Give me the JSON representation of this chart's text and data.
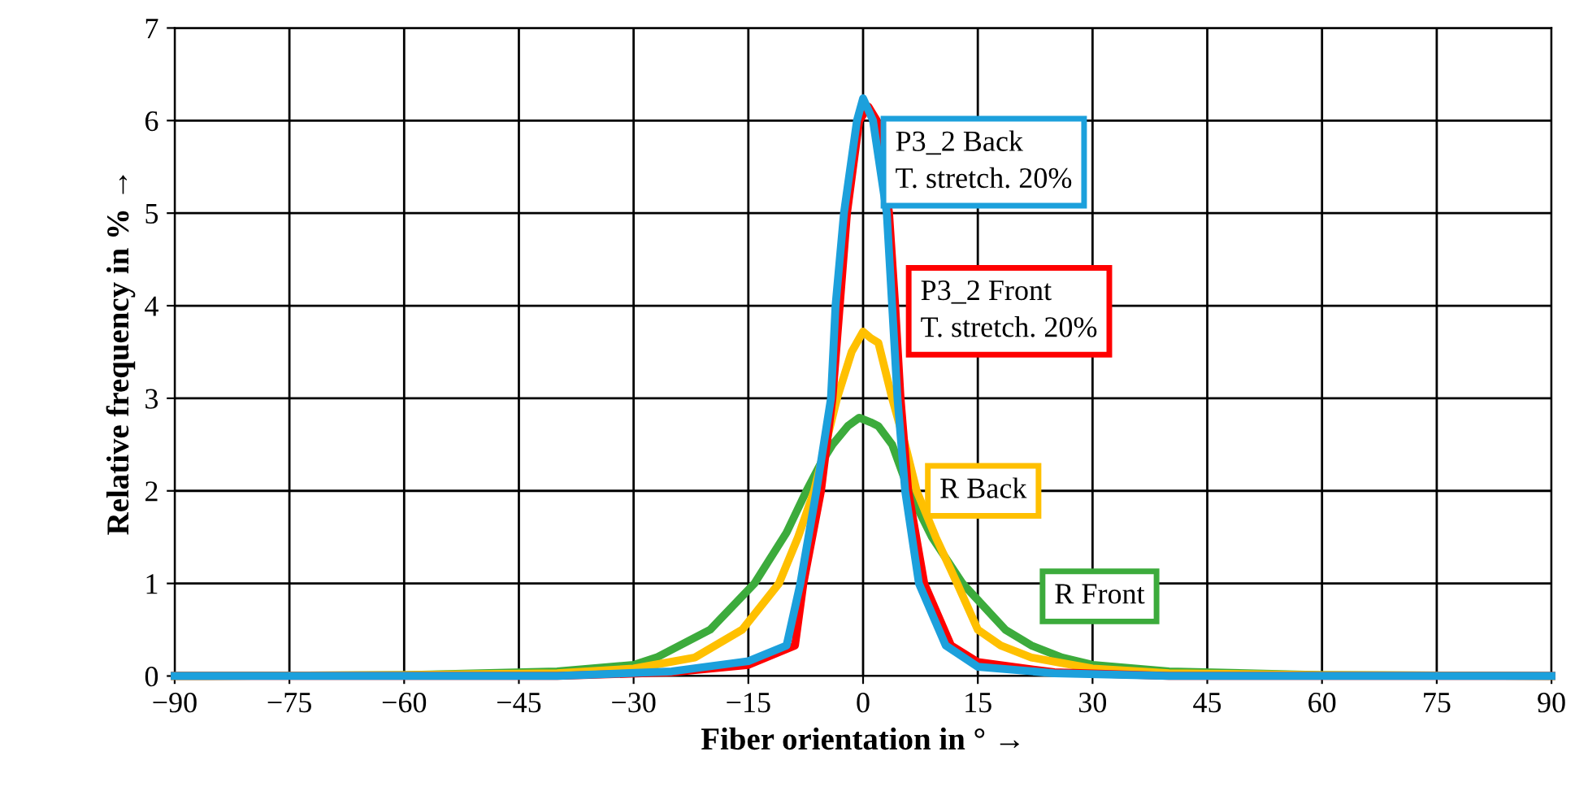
{
  "chart_data": {
    "type": "line",
    "xlabel": "Fiber orientation in ° →",
    "ylabel": "Relative frequency in % →",
    "xlim": [
      -90,
      90
    ],
    "ylim": [
      0,
      7
    ],
    "xticks": [
      {
        "value": -90,
        "label": "−90"
      },
      {
        "value": -75,
        "label": "−75"
      },
      {
        "value": -60,
        "label": "−60"
      },
      {
        "value": -45,
        "label": "−45"
      },
      {
        "value": -30,
        "label": "−30"
      },
      {
        "value": -15,
        "label": "−15"
      },
      0,
      15,
      30,
      45,
      60,
      75,
      90
    ],
    "yticks": [
      0,
      1,
      2,
      3,
      4,
      5,
      6,
      7
    ],
    "grid": true,
    "legend": false,
    "marker": "none",
    "line_style": "solid",
    "series": [
      {
        "name": "R Front",
        "color": "#3cab3c",
        "x": [
          -90,
          -60,
          -40,
          -30,
          -27,
          -20,
          -14.2,
          -10,
          -7.4,
          -5.5,
          -4,
          -2,
          -0.5,
          1,
          2,
          3.8,
          6,
          9,
          13,
          18.6,
          22,
          26,
          30,
          40,
          60,
          90
        ],
        "values": [
          0,
          0.01,
          0.05,
          0.12,
          0.2,
          0.5,
          1,
          1.55,
          2,
          2.3,
          2.5,
          2.7,
          2.79,
          2.74,
          2.7,
          2.5,
          2,
          1.5,
          1,
          0.5,
          0.33,
          0.2,
          0.12,
          0.05,
          0.01,
          0
        ]
      },
      {
        "name": "R Back",
        "color": "#ffc000",
        "x": [
          -90,
          -60,
          -40,
          -30,
          -22,
          -15.8,
          -11,
          -8.5,
          -6.4,
          -3.4,
          -1.5,
          0,
          1,
          2,
          3.8,
          5.5,
          7,
          9.5,
          12.3,
          15,
          18,
          22,
          30,
          40,
          60,
          90
        ],
        "values": [
          0,
          0.01,
          0.03,
          0.08,
          0.2,
          0.5,
          1,
          1.5,
          2,
          3,
          3.5,
          3.72,
          3.65,
          3.6,
          3,
          2.5,
          2,
          1.5,
          1,
          0.5,
          0.33,
          0.2,
          0.08,
          0.03,
          0.01,
          0
        ]
      },
      {
        "name": "P3_2 Front\nT. stretch. 20%",
        "color": "#ff0000",
        "x": [
          -90,
          -40,
          -25,
          -15,
          -8.9,
          -7.8,
          -5.5,
          -4,
          -2.1,
          -0.5,
          0.7,
          1.8,
          3.4,
          4.2,
          4.9,
          5.9,
          8,
          11.5,
          15,
          25,
          40,
          90
        ],
        "values": [
          0,
          0,
          0.04,
          0.12,
          0.33,
          1,
          2,
          3,
          5,
          6,
          6.15,
          6,
          5,
          4,
          3,
          2,
          1,
          0.33,
          0.15,
          0.04,
          0,
          0
        ]
      },
      {
        "name": "P3_2 Back\nT. stretch. 20%",
        "color": "#1ca0dc",
        "x": [
          -90,
          -40,
          -25,
          -15,
          -10,
          -8.2,
          -6.1,
          -4.2,
          -3.6,
          -2.5,
          -0.8,
          0,
          1.3,
          3.1,
          3.8,
          4.5,
          5.5,
          7.3,
          10.8,
          15,
          25,
          40,
          90
        ],
        "values": [
          0,
          0,
          0.05,
          0.16,
          0.33,
          1,
          2,
          3,
          4,
          5,
          6,
          6.24,
          6,
          5,
          4,
          3,
          2,
          1,
          0.33,
          0.1,
          0.03,
          0,
          0
        ]
      }
    ]
  }
}
